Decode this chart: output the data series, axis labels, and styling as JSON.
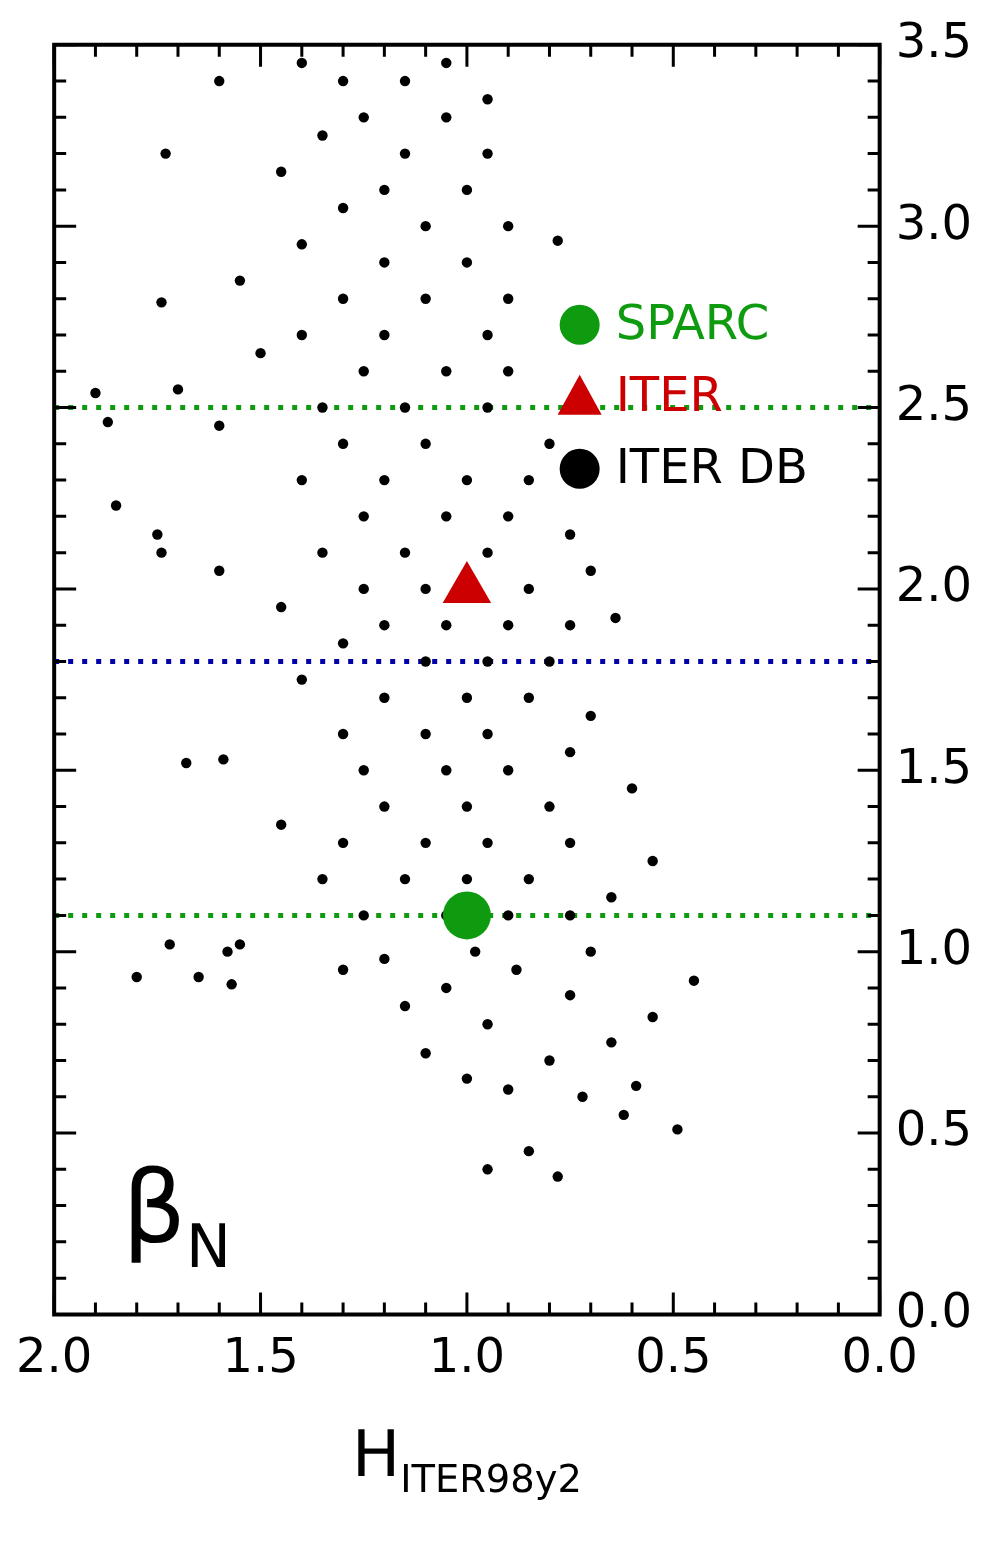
{
  "chart_data": {
    "type": "scatter",
    "xlabel": "H$_{ITER98y2}$",
    "ylabel": "β$_{N}$",
    "legend": "top right",
    "xlim": [
      2,
      0
    ],
    "ylim": [
      0,
      3.5
    ],
    "yticks": [
      {
        "value": 0,
        "label": "0.0"
      },
      {
        "value": 0.1,
        "label": null
      },
      {
        "value": 0.2,
        "label": null
      },
      {
        "value": 0.3,
        "label": null
      },
      {
        "value": 0.4,
        "label": null
      },
      0.5,
      {
        "value": 0.6,
        "label": null
      },
      {
        "value": 0.7,
        "label": null
      },
      {
        "value": 0.8,
        "label": null
      },
      {
        "value": 0.9,
        "label": null
      },
      {
        "value": 1,
        "label": "1.0"
      },
      {
        "value": 1.1,
        "label": null
      },
      {
        "value": 1.2,
        "label": null
      },
      {
        "value": 1.3,
        "label": null
      },
      {
        "value": 1.4,
        "label": null
      },
      1.5,
      {
        "value": 1.6,
        "label": null
      },
      {
        "value": 1.7,
        "label": null
      },
      {
        "value": 1.8,
        "label": null
      },
      {
        "value": 1.9,
        "label": null
      },
      {
        "value": 2,
        "label": "2.0"
      },
      {
        "value": 2.1,
        "label": null
      },
      {
        "value": 2.2,
        "label": null
      },
      {
        "value": 2.3,
        "label": null
      },
      {
        "value": 2.4,
        "label": null
      },
      2.5,
      {
        "value": 2.6,
        "label": null
      },
      {
        "value": 2.7,
        "label": null
      },
      {
        "value": 2.8,
        "label": null
      },
      {
        "value": 2.9,
        "label": null
      },
      {
        "value": 3,
        "label": "3.0"
      },
      {
        "value": 3.1,
        "label": null
      },
      {
        "value": 3.2,
        "label": null
      },
      {
        "value": 3.3,
        "label": null
      },
      {
        "value": 3.4,
        "label": null
      },
      3.5
    ],
    "xticks": [
      {
        "value": 2,
        "label": "2.0"
      },
      {
        "value": 1.9,
        "label": null
      },
      {
        "value": 1.8,
        "label": null
      },
      {
        "value": 1.7,
        "label": null
      },
      {
        "value": 1.6,
        "label": null
      },
      1.5,
      {
        "value": 1.4,
        "label": null
      },
      {
        "value": 1.3,
        "label": null
      },
      {
        "value": 1.2,
        "label": null
      },
      {
        "value": 1.1,
        "label": null
      },
      {
        "value": 1,
        "label": "1.0"
      },
      {
        "value": 0.9,
        "label": null
      },
      {
        "value": 0.8,
        "label": null
      },
      {
        "value": 0.7,
        "label": null
      },
      {
        "value": 0.6,
        "label": null
      },
      0.5,
      {
        "value": 0.4,
        "label": null
      },
      {
        "value": 0.3,
        "label": null
      },
      {
        "value": 0.2,
        "label": null
      },
      {
        "value": 0.1,
        "label": null
      },
      {
        "value": 0,
        "label": "0.0"
      }
    ],
    "ref_lines": [
      {
        "axis": "y",
        "value": 1.1,
        "color": "#0f9b0f",
        "line_style": "dotted"
      },
      {
        "axis": "y",
        "value": 1.8,
        "color": "#0000aa",
        "line_style": "dotted"
      },
      {
        "axis": "y",
        "value": 2.5,
        "color": "#0f9b0f",
        "line_style": "dotted"
      }
    ],
    "series": [
      {
        "name": "SPARC",
        "marker": "circle",
        "color": "#0f9b0f",
        "x": [
          1.0
        ],
        "values": [
          1.1
        ]
      },
      {
        "name": "ITER",
        "marker": "triangle",
        "color": "#cc0000",
        "x": [
          1.0
        ],
        "values": [
          2.0
        ]
      },
      {
        "name": "ITER DB",
        "marker": "circle",
        "color": "#000000",
        "values": [
          0.38,
          0.4,
          0.45,
          0.51,
          0.55,
          0.6,
          0.62,
          0.63,
          0.65,
          0.7,
          0.72,
          0.75,
          0.8,
          0.82,
          0.85,
          0.88,
          0.9,
          0.92,
          0.95,
          0.95,
          0.98,
          1.0,
          1.0,
          1.02,
          1.02,
          1.0,
          0.93,
          0.93,
          0.91,
          1.52,
          1.53,
          1.1,
          1.1,
          1.1,
          1.1,
          1.15,
          1.2,
          1.2,
          1.2,
          1.2,
          1.25,
          1.3,
          1.3,
          1.3,
          1.3,
          1.35,
          1.4,
          1.4,
          1.4,
          1.45,
          1.5,
          1.5,
          1.5,
          1.55,
          1.6,
          1.6,
          1.6,
          1.65,
          1.7,
          1.7,
          1.7,
          1.75,
          1.8,
          1.8,
          1.8,
          1.85,
          1.9,
          1.9,
          1.9,
          1.9,
          1.95,
          2.0,
          2.0,
          2.0,
          2.05,
          2.05,
          2.1,
          2.1,
          2.1,
          2.15,
          2.15,
          2.2,
          2.2,
          2.2,
          2.1,
          2.23,
          2.54,
          2.46,
          2.79,
          3.2,
          3.4,
          2.96,
          1.92,
          2.3,
          2.3,
          2.3,
          2.3,
          2.4,
          2.4,
          2.4,
          2.45,
          2.5,
          2.5,
          2.5,
          2.55,
          2.6,
          2.6,
          2.6,
          2.65,
          2.7,
          2.7,
          2.7,
          2.8,
          2.8,
          2.8,
          2.85,
          2.9,
          2.9,
          2.95,
          3.0,
          3.0,
          3.05,
          3.1,
          3.1,
          3.15,
          3.2,
          3.2,
          3.25,
          3.3,
          3.3,
          3.35,
          3.4,
          3.4,
          3.45,
          3.45
        ],
        "x": [
          0.78,
          0.95,
          0.85,
          0.49,
          0.62,
          0.72,
          0.9,
          0.59,
          1.0,
          0.8,
          1.1,
          0.65,
          0.95,
          0.55,
          1.15,
          0.75,
          1.05,
          0.45,
          0.88,
          1.3,
          1.2,
          0.7,
          0.98,
          1.72,
          1.55,
          1.58,
          1.8,
          1.65,
          1.57,
          1.68,
          1.59,
          0.75,
          0.9,
          1.05,
          1.25,
          0.65,
          0.85,
          1.0,
          1.15,
          1.35,
          0.55,
          0.75,
          0.95,
          1.1,
          1.3,
          1.45,
          0.8,
          1.0,
          1.2,
          0.6,
          0.9,
          1.05,
          1.25,
          0.75,
          0.95,
          1.1,
          1.3,
          0.7,
          0.85,
          1.0,
          1.2,
          1.4,
          0.8,
          0.95,
          1.1,
          1.3,
          0.75,
          0.9,
          1.05,
          1.2,
          1.45,
          0.85,
          1.1,
          1.25,
          0.7,
          1.6,
          0.95,
          1.15,
          1.35,
          0.75,
          1.75,
          0.9,
          1.05,
          1.25,
          1.74,
          1.85,
          1.9,
          1.87,
          1.74,
          1.73,
          1.6,
          0.78,
          0.64,
          0.85,
          1.0,
          1.2,
          1.4,
          0.8,
          1.1,
          1.3,
          1.6,
          0.95,
          1.15,
          1.35,
          1.7,
          0.9,
          1.05,
          1.25,
          1.5,
          0.95,
          1.2,
          1.4,
          0.9,
          1.1,
          1.3,
          1.55,
          1.0,
          1.2,
          1.4,
          0.9,
          1.1,
          1.3,
          1.0,
          1.2,
          1.45,
          0.95,
          1.15,
          1.35,
          1.05,
          1.25,
          0.95,
          1.15,
          1.3,
          1.05,
          1.4
        ]
      }
    ]
  }
}
